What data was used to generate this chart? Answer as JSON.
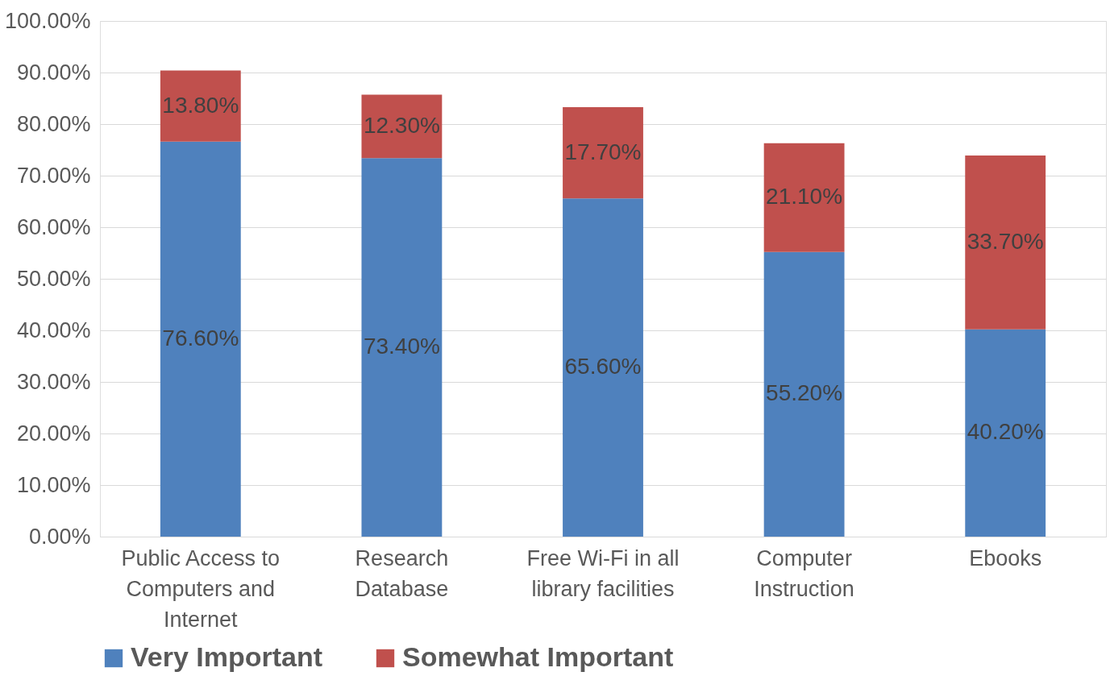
{
  "chart_data": {
    "type": "bar",
    "stacked": true,
    "categories": [
      "Public Access to\nComputers and\nInternet",
      "Research\nDatabase",
      "Free Wi-Fi in all\nlibrary facilities",
      "Computer\nInstruction",
      "Ebooks"
    ],
    "series": [
      {
        "name": "Very Important",
        "color": "#4f81bd",
        "values": [
          76.6,
          73.4,
          65.6,
          55.2,
          40.2
        ],
        "value_labels": [
          "76.60%",
          "73.40%",
          "65.60%",
          "55.20%",
          "40.20%"
        ]
      },
      {
        "name": "Somewhat Important",
        "color": "#c0504d",
        "values": [
          13.8,
          12.3,
          17.7,
          21.1,
          33.7
        ],
        "value_labels": [
          "13.80%",
          "12.30%",
          "17.70%",
          "21.10%",
          "33.70%"
        ]
      }
    ],
    "ylim": [
      0,
      100
    ],
    "yticks": [
      {
        "value": 0,
        "label": "0.00%"
      },
      {
        "value": 10,
        "label": "10.00%"
      },
      {
        "value": 20,
        "label": "20.00%"
      },
      {
        "value": 30,
        "label": "30.00%"
      },
      {
        "value": 40,
        "label": "40.00%"
      },
      {
        "value": 50,
        "label": "50.00%"
      },
      {
        "value": 60,
        "label": "60.00%"
      },
      {
        "value": 70,
        "label": "70.00%"
      },
      {
        "value": 80,
        "label": "80.00%"
      },
      {
        "value": 90,
        "label": "90.00%"
      },
      {
        "value": 100,
        "label": "100.00%"
      }
    ],
    "grid": "y",
    "legend": "bottom"
  }
}
